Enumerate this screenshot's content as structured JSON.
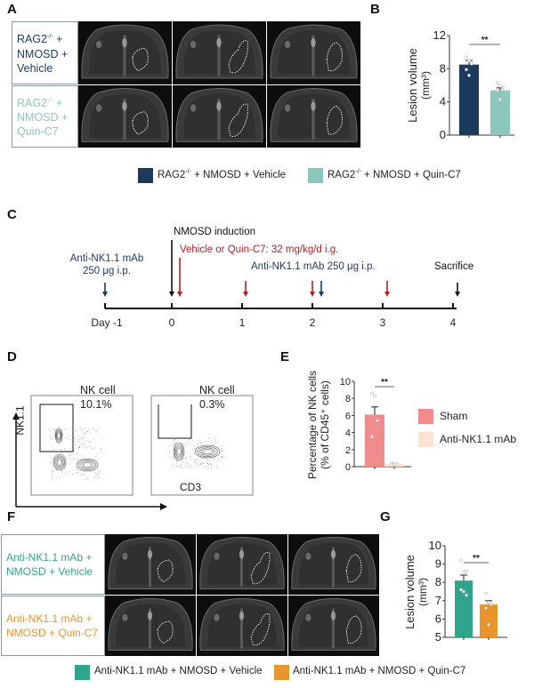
{
  "panels": {
    "A": {
      "label": "A",
      "rows": [
        {
          "line1": "RAG2",
          "sup": "-/-",
          "line1b": " +",
          "line2": "NMOSD +",
          "line3": "Vehicle",
          "color": "#1c3a5e"
        },
        {
          "line1": "RAG2",
          "sup": "-/-",
          "line1b": " +",
          "line2": "NMOSD +",
          "line3": "Quin-C7",
          "color": "#8cc7be"
        }
      ]
    },
    "B": {
      "label": "B"
    },
    "C": {
      "label": "C",
      "nmosd_induction": "NMOSD induction",
      "vehicle_text": "Vehicle or Quin-C7: 32 mg/kg/d i.g.",
      "antinK_day2": "Anti-NK1.1 mAb 250 μg i.p.",
      "antinK_dayneg1_line1": "Anti-NK1.1 mAb",
      "antinK_dayneg1_line2": "250 μg i.p.",
      "sacrifice": "Sacrifice",
      "days": [
        "Day -1",
        "0",
        "1",
        "2",
        "3",
        "4"
      ],
      "colors": {
        "red": "#b52025",
        "navy": "#1c3a5e",
        "black": "#111111"
      }
    },
    "D": {
      "label": "D",
      "y_axis": "NK1.1",
      "x_axis": "CD3",
      "plots": [
        {
          "gate_label": "NK cell",
          "gate_value": "10.1%"
        },
        {
          "gate_label": "NK cell",
          "gate_value": "0.3%"
        }
      ]
    },
    "E": {
      "label": "E"
    },
    "F": {
      "label": "F",
      "rows": [
        {
          "line1": "Anti-NK1.1 mAb +",
          "line2": "NMOSD + Vehicle",
          "color": "#2fa58b"
        },
        {
          "line1": "Anti-NK1.1 mAb +",
          "line2": "NMOSD + Quin-C7",
          "color": "#e8952d"
        }
      ]
    },
    "G": {
      "label": "G"
    }
  },
  "legends": {
    "B": [
      {
        "text_a": "RAG2",
        "sup": "-/-",
        "text_b": " + NMOSD + Vehicle",
        "color": "#1c3a5e"
      },
      {
        "text_a": "RAG2",
        "sup": "-/-",
        "text_b": " + NMOSD + Quin-C7",
        "color": "#8cc7be"
      }
    ],
    "E": [
      {
        "text": "Sham",
        "color": "#f08c8c"
      },
      {
        "text": "Anti-NK1.1 mAb",
        "color": "#fbe3d2"
      }
    ],
    "G": [
      {
        "text": "Anti-NK1.1 mAb + NMOSD + Vehicle",
        "color": "#2fa58b"
      },
      {
        "text": "Anti-NK1.1 mAb + NMOSD + Quin-C7",
        "color": "#e8952d"
      }
    ]
  },
  "chart_data": [
    {
      "id": "B",
      "type": "bar",
      "title": "",
      "ylabel_line1": "Lesion volume",
      "ylabel_line2": "(mm³)",
      "categories": [
        "RAG2-/- + NMOSD + Vehicle",
        "RAG2-/- + NMOSD + Quin-C7"
      ],
      "values": [
        8.5,
        5.4
      ],
      "errors": [
        0.5,
        0.3
      ],
      "colors": [
        "#1c3a5e",
        "#8cc7be"
      ],
      "ylim": [
        0,
        12
      ],
      "yticks": [
        "0",
        "4",
        "8",
        "12"
      ],
      "significance": "**",
      "points": [
        [
          9.4,
          9.0,
          8.6,
          7.9,
          7.2
        ],
        [
          6.3,
          5.9,
          5.7,
          5.4,
          4.3
        ]
      ]
    },
    {
      "id": "E",
      "type": "bar",
      "title": "",
      "ylabel_line1": "Percentage of NK cells",
      "ylabel_line2": "(% of CD45⁺ cells)",
      "categories": [
        "Sham",
        "Anti-NK1.1 mAb"
      ],
      "values": [
        6.1,
        0.3
      ],
      "errors": [
        0.9,
        0.1
      ],
      "colors": [
        "#f08c8c",
        "#fbe3d2"
      ],
      "ylim": [
        0,
        10
      ],
      "yticks": [
        "0",
        "2",
        "4",
        "6",
        "8",
        "10"
      ],
      "significance": "**",
      "points": [
        [
          8.6,
          8.3,
          5.4,
          3.5
        ],
        [
          0.4,
          0.3,
          0.3,
          0.2
        ]
      ]
    },
    {
      "id": "G",
      "type": "bar",
      "title": "",
      "ylabel_line1": "Lesion volume",
      "ylabel_line2": "(mm³)",
      "categories": [
        "Anti-NK1.1 mAb + NMOSD + Vehicle",
        "Anti-NK1.1 mAb + NMOSD + Quin-C7"
      ],
      "values": [
        8.1,
        6.8
      ],
      "errors": [
        0.3,
        0.2
      ],
      "colors": [
        "#2fa58b",
        "#e8952d"
      ],
      "ylim": [
        5,
        10
      ],
      "yticks": [
        "5",
        "6",
        "7",
        "8",
        "9",
        "10"
      ],
      "significance": "**",
      "points": [
        [
          9.2,
          8.6,
          8.6,
          7.6,
          7.5,
          7.3
        ],
        [
          7.4,
          6.9,
          6.8,
          6.6,
          5.7
        ]
      ]
    }
  ]
}
